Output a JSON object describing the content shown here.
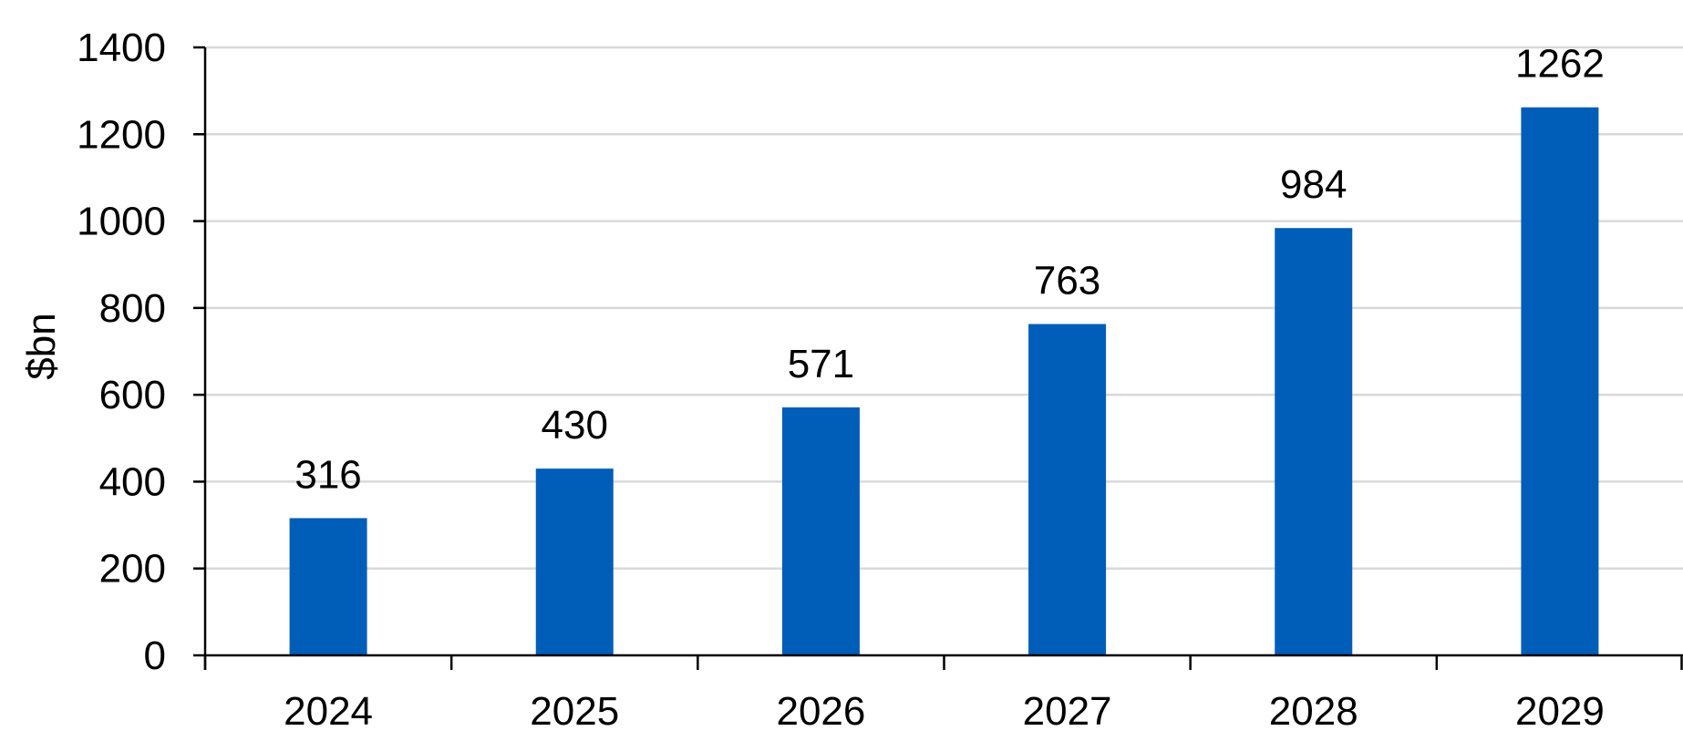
{
  "chart_data": {
    "type": "bar",
    "title": "",
    "xlabel": "",
    "ylabel": "$bn",
    "categories": [
      "2024",
      "2025",
      "2026",
      "2027",
      "2028",
      "2029"
    ],
    "values": [
      316,
      430,
      571,
      763,
      984,
      1262
    ],
    "data_labels": [
      "316",
      "430",
      "571",
      "763",
      "984",
      "1262"
    ],
    "ylim": [
      0,
      1400
    ],
    "yticks": [
      0,
      200,
      400,
      600,
      800,
      1000,
      1200,
      1400
    ],
    "grid": true,
    "legend": "none",
    "colors": {
      "bar": "#005EB8",
      "grid": "#D9D9D9",
      "axis": "#000000"
    }
  }
}
